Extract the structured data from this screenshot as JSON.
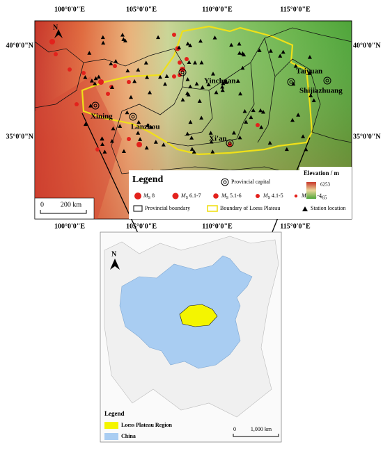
{
  "main_map": {
    "lon_labels_top": [
      "100°0'0\"E",
      "105°0'0\"E",
      "110°0'0\"E",
      "115°0'0\"E"
    ],
    "lon_labels_bottom": [
      "100°0'0\"E",
      "105°0'0\"E",
      "110°0'0\"E",
      "115°0'0\"E"
    ],
    "lat_labels_left": [
      "40°0'0\"N",
      "35°0'0\"N"
    ],
    "lat_labels_right": [
      "40°0'0\"N",
      "35°0'0\"N"
    ],
    "north": "N",
    "cities": [
      "Yinchuan",
      "Taiyuan",
      "Shijiazhuang",
      "Xining",
      "Lanzhou",
      "Xi'an"
    ],
    "legend": {
      "title": "Legend",
      "capital": "Provincial capital",
      "magnitudes": [
        {
          "symbol": "M",
          "sub": "S",
          "range": "8"
        },
        {
          "symbol": "M",
          "sub": "S",
          "range": "6.1-7"
        },
        {
          "symbol": "M",
          "sub": "S",
          "range": "5.1-6"
        },
        {
          "symbol": "M",
          "sub": "S",
          "range": "4.1-5"
        },
        {
          "symbol": "M",
          "sub": "L",
          "range": "3.1-4"
        }
      ],
      "provincial_boundary": "Provincial boundary",
      "loess_boundary": "Boundary of Loess Plateau",
      "station": "Station location"
    },
    "elevation": {
      "title": "Elevation / m",
      "max": "6253",
      "min": "-65"
    },
    "scale": [
      "0",
      "200 km"
    ]
  },
  "inset": {
    "north": "N",
    "legend_title": "Legend",
    "loess": "Loess Plateau Region",
    "china": "China",
    "scale": [
      "0",
      "1,000 km"
    ]
  }
}
